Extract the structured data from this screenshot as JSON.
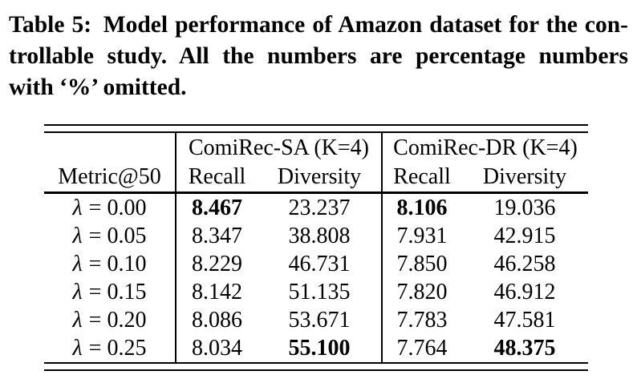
{
  "caption": {
    "lines": [
      "Table 5: Model performance of Amazon dataset for the con-",
      "trollable study. All the numbers are percentage numbers",
      "with ‘%’ omitted."
    ]
  },
  "table": {
    "corner_label": "Metric@50",
    "groups": [
      {
        "label": "ComiRec-SA (K=4)",
        "recall_label": "Recall",
        "diversity_label": "Diversity"
      },
      {
        "label": "ComiRec-DR (K=4)",
        "recall_label": "Recall",
        "diversity_label": "Diversity"
      }
    ],
    "rows": [
      {
        "symbol": "λ",
        "rest": "= 0.00",
        "cells": [
          {
            "text": "8.467",
            "best": true
          },
          {
            "text": "23.237",
            "best": false
          },
          {
            "text": "8.106",
            "best": true
          },
          {
            "text": "19.036",
            "best": false
          }
        ]
      },
      {
        "symbol": "λ",
        "rest": "= 0.05",
        "cells": [
          {
            "text": "8.347",
            "best": false
          },
          {
            "text": "38.808",
            "best": false
          },
          {
            "text": "7.931",
            "best": false
          },
          {
            "text": "42.915",
            "best": false
          }
        ]
      },
      {
        "symbol": "λ",
        "rest": "= 0.10",
        "cells": [
          {
            "text": "8.229",
            "best": false
          },
          {
            "text": "46.731",
            "best": false
          },
          {
            "text": "7.850",
            "best": false
          },
          {
            "text": "46.258",
            "best": false
          }
        ]
      },
      {
        "symbol": "λ",
        "rest": "= 0.15",
        "cells": [
          {
            "text": "8.142",
            "best": false
          },
          {
            "text": "51.135",
            "best": false
          },
          {
            "text": "7.820",
            "best": false
          },
          {
            "text": "46.912",
            "best": false
          }
        ]
      },
      {
        "symbol": "λ",
        "rest": "= 0.20",
        "cells": [
          {
            "text": "8.086",
            "best": false
          },
          {
            "text": "53.671",
            "best": false
          },
          {
            "text": "7.783",
            "best": false
          },
          {
            "text": "47.581",
            "best": false
          }
        ]
      },
      {
        "symbol": "λ",
        "rest": "= 0.25",
        "cells": [
          {
            "text": "8.034",
            "best": false
          },
          {
            "text": "55.100",
            "best": true
          },
          {
            "text": "7.764",
            "best": false
          },
          {
            "text": "48.375",
            "best": true
          }
        ]
      }
    ]
  },
  "colors": {
    "text": "#000000",
    "background": "#ffffff"
  }
}
